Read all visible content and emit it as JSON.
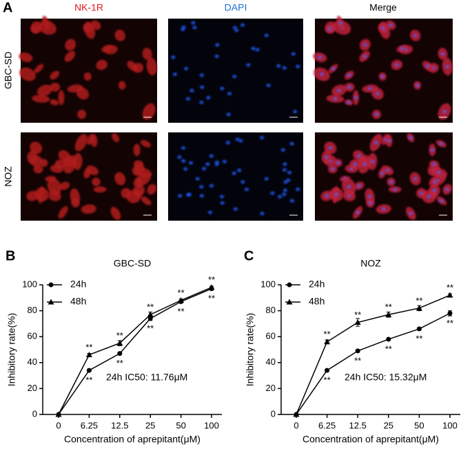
{
  "panel_a": {
    "label": "A",
    "columns": [
      "NK-1R",
      "DAPI",
      "Merge"
    ],
    "rows": [
      "GBC-SD",
      "NOZ"
    ]
  },
  "chart_data": [
    {
      "panel": "B",
      "type": "line",
      "title": "GBC-SD",
      "x_label": "Concentration of aprepitant(μM)",
      "y_label": "Inhibitory rate(%)",
      "categories": [
        "0",
        "6.25",
        "12.5",
        "25",
        "50",
        "100"
      ],
      "ylim": [
        0,
        100
      ],
      "yticks": [
        0,
        20,
        40,
        60,
        80,
        100
      ],
      "annotation": "24h IC50: 11.76μM",
      "series": [
        {
          "name": "24h",
          "color": "#000000",
          "marker": "circle",
          "values": [
            0,
            34,
            47,
            74,
            87,
            97
          ],
          "errors": [
            0,
            1,
            1,
            1.5,
            1,
            1
          ],
          "significance": [
            null,
            "**",
            "**",
            "**",
            "**",
            "**"
          ]
        },
        {
          "name": "48h",
          "color": "#000000",
          "marker": "triangle",
          "values": [
            0,
            46,
            55,
            77,
            88,
            98
          ],
          "errors": [
            0,
            1,
            2,
            2,
            1,
            1
          ],
          "significance": [
            null,
            "**",
            "**",
            "**",
            "**",
            "**"
          ]
        }
      ]
    },
    {
      "panel": "C",
      "type": "line",
      "title": "NOZ",
      "x_label": "Concentration of aprepitant(μM)",
      "y_label": "Inhibitory rate(%)",
      "categories": [
        "0",
        "6.25",
        "12.5",
        "25",
        "50",
        "100"
      ],
      "ylim": [
        0,
        100
      ],
      "yticks": [
        0,
        20,
        40,
        60,
        80,
        100
      ],
      "annotation": "24h IC50: 15.32μM",
      "series": [
        {
          "name": "24h",
          "color": "#000000",
          "marker": "circle",
          "values": [
            0,
            34,
            49,
            58,
            66,
            78
          ],
          "errors": [
            0,
            1,
            1,
            1,
            1,
            2
          ],
          "significance": [
            null,
            "**",
            "**",
            "**",
            "**",
            "**"
          ]
        },
        {
          "name": "48h",
          "color": "#000000",
          "marker": "triangle",
          "values": [
            0,
            56,
            71,
            77,
            82,
            92
          ],
          "errors": [
            0,
            1.5,
            3,
            2,
            2,
            1
          ],
          "significance": [
            null,
            "**",
            "**",
            "**",
            "**",
            "**"
          ]
        }
      ]
    }
  ]
}
